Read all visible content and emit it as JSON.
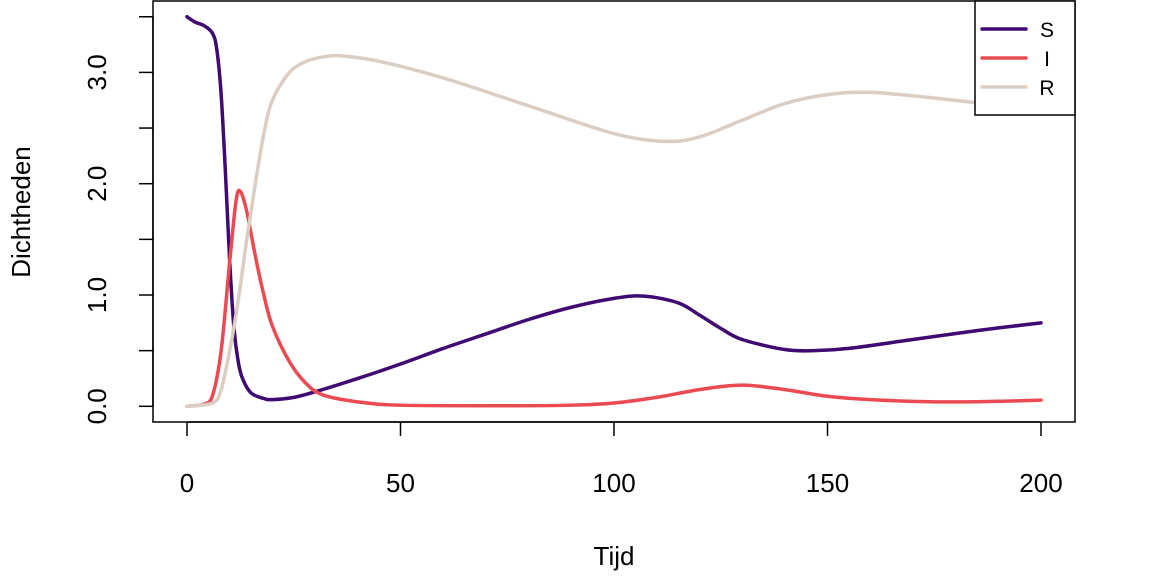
{
  "chart_data": {
    "type": "line",
    "title": "",
    "xlabel": "Tijd",
    "ylabel": "Dichtheden",
    "xlim": [
      0,
      200
    ],
    "ylim": [
      0,
      3.5
    ],
    "x_ticks": [
      0,
      50,
      100,
      150,
      200
    ],
    "x_tick_labels": [
      "0",
      "50",
      "100",
      "150",
      "200"
    ],
    "y_ticks": [
      0,
      0.5,
      1,
      1.5,
      2,
      2.5,
      3,
      3.5
    ],
    "y_tick_labels": [
      "0.0",
      "",
      "1.0",
      "",
      "2.0",
      "",
      "3.0",
      ""
    ],
    "grid": false,
    "legend_position": "top-right",
    "series": [
      {
        "name": "S",
        "color": "#3f0a72",
        "x": [
          0,
          2,
          4,
          6,
          7,
          8,
          9,
          10,
          11,
          12,
          13,
          15,
          18,
          20,
          25,
          30,
          40,
          50,
          60,
          70,
          80,
          90,
          100,
          107,
          115,
          120,
          125,
          130,
          140,
          147,
          155,
          170,
          185,
          200
        ],
        "y": [
          3.5,
          3.45,
          3.42,
          3.35,
          3.2,
          2.8,
          2.1,
          1.3,
          0.7,
          0.4,
          0.25,
          0.12,
          0.07,
          0.06,
          0.08,
          0.13,
          0.25,
          0.38,
          0.52,
          0.65,
          0.78,
          0.89,
          0.97,
          0.99,
          0.93,
          0.82,
          0.7,
          0.6,
          0.51,
          0.5,
          0.52,
          0.6,
          0.68,
          0.75
        ]
      },
      {
        "name": "I",
        "color": "#eb4a52",
        "x": [
          0,
          4,
          6,
          8,
          10,
          11.5,
          12.5,
          14,
          16,
          18,
          20,
          24,
          28,
          32,
          40,
          50,
          75,
          90,
          100,
          110,
          120,
          130,
          140,
          150,
          160,
          175,
          190,
          200
        ],
        "y": [
          0,
          0.02,
          0.1,
          0.5,
          1.3,
          1.85,
          1.93,
          1.75,
          1.35,
          1.0,
          0.72,
          0.4,
          0.2,
          0.1,
          0.04,
          0.01,
          0.005,
          0.01,
          0.03,
          0.08,
          0.15,
          0.19,
          0.15,
          0.09,
          0.06,
          0.04,
          0.045,
          0.055
        ]
      },
      {
        "name": "R",
        "color": "#dccdc2",
        "x": [
          0,
          6,
          8,
          10,
          12,
          14,
          16,
          18,
          20,
          24,
          28,
          32,
          36,
          45,
          60,
          80,
          100,
          112,
          120,
          130,
          140,
          150,
          160,
          175,
          190,
          200
        ],
        "y": [
          0,
          0.03,
          0.15,
          0.5,
          0.95,
          1.5,
          2.0,
          2.45,
          2.75,
          3.0,
          3.1,
          3.14,
          3.15,
          3.1,
          2.95,
          2.7,
          2.45,
          2.38,
          2.42,
          2.57,
          2.72,
          2.8,
          2.82,
          2.77,
          2.7,
          2.64
        ]
      }
    ]
  }
}
